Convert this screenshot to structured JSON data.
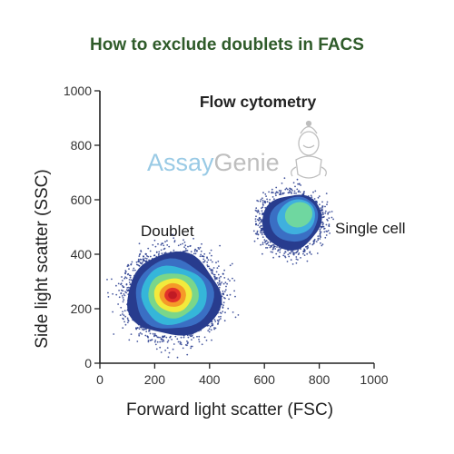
{
  "chart_data": {
    "type": "scatter",
    "title": "How to exclude doublets in FACS",
    "subtitle": "Flow cytometry",
    "xlabel": "Forward light scatter (FSC)",
    "ylabel": "Side light scatter (SSC)",
    "xlim": [
      0,
      1000
    ],
    "ylim": [
      0,
      1000
    ],
    "xticks": [
      0,
      200,
      400,
      600,
      800,
      1000
    ],
    "yticks": [
      0,
      200,
      400,
      600,
      800,
      1000
    ],
    "grid": false,
    "display": "density plot (blue = low event density, red = high event density)",
    "density_colors": [
      "#283c8e",
      "#3a6fc4",
      "#35b6d9",
      "#7ad68a",
      "#f2ea3c",
      "#f59a28",
      "#e2312a",
      "#c01a24"
    ],
    "single_cell_colors": [
      "#283c8e",
      "#3a6fc4",
      "#3fb0de",
      "#6fd7a0"
    ],
    "populations": [
      {
        "name": "Doublet",
        "center": {
          "fsc": 270,
          "ssc": 250
        },
        "fsc_range": [
          40,
          500
        ],
        "ssc_range": [
          30,
          460
        ],
        "peak": {
          "fsc": 265,
          "ssc": 250
        }
      },
      {
        "name": "Single cell",
        "center": {
          "fsc": 700,
          "ssc": 520
        },
        "fsc_range": [
          530,
          830
        ],
        "ssc_range": [
          370,
          660
        ],
        "peak": {
          "fsc": 725,
          "ssc": 545
        }
      }
    ],
    "annotations": [
      "Doublet",
      "Single cell"
    ]
  },
  "watermark": {
    "part1": "Assay",
    "part2": "Genie",
    "color1": "#8fc5e3",
    "color2": "#b8b8b8",
    "icon": "genie-mascot-icon"
  },
  "colors": {
    "title": "#2f5b2a",
    "axis": "#222222"
  }
}
